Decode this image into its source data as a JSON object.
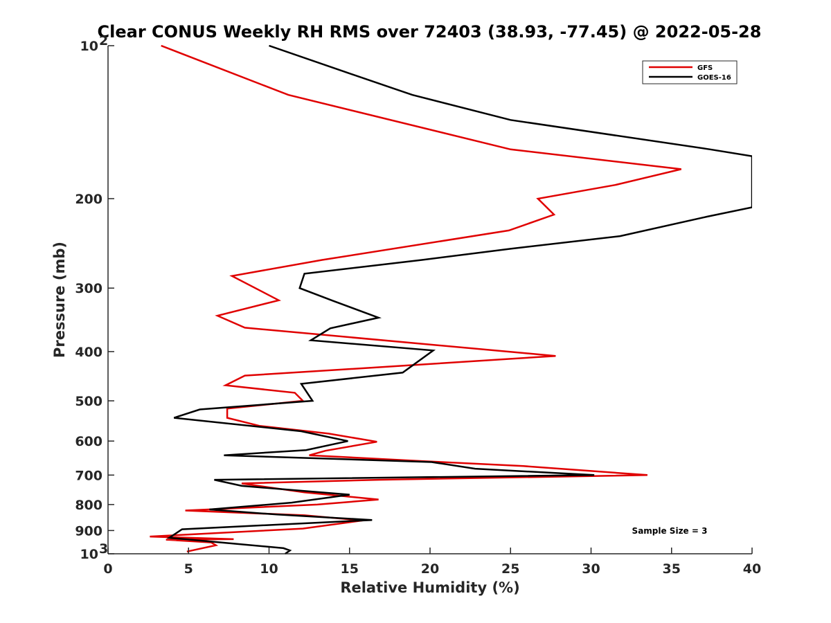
{
  "chart_data": {
    "type": "line",
    "title": "Clear CONUS Weekly RH RMS over 72403 (38.93, -77.45) @ 2022-05-28",
    "xlabel": "Relative Humidity (%)",
    "ylabel": "Pressure (mb)",
    "xlim": [
      0,
      40
    ],
    "ylim": [
      100,
      1000
    ],
    "y_scale": "log",
    "y_reversed": true,
    "x_ticks": [
      "0",
      "5",
      "10",
      "15",
      "20",
      "25",
      "30",
      "35",
      "40"
    ],
    "y_ticks": [
      {
        "value": 100,
        "label": "10",
        "sup": "2"
      },
      {
        "value": 200,
        "label": "200",
        "sup": ""
      },
      {
        "value": 300,
        "label": "300",
        "sup": ""
      },
      {
        "value": 400,
        "label": "400",
        "sup": ""
      },
      {
        "value": 500,
        "label": "500",
        "sup": ""
      },
      {
        "value": 600,
        "label": "600",
        "sup": ""
      },
      {
        "value": 700,
        "label": "700",
        "sup": ""
      },
      {
        "value": 800,
        "label": "800",
        "sup": ""
      },
      {
        "value": 900,
        "label": "900",
        "sup": ""
      },
      {
        "value": 1000,
        "label": "10",
        "sup": "3"
      }
    ],
    "legend_position": "top-right",
    "grid": false,
    "annotation": "Sample Size = 3",
    "series": [
      {
        "name": "GFS",
        "color": "#e00000",
        "points": [
          [
            3.3,
            100
          ],
          [
            11.2,
            125
          ],
          [
            25,
            160
          ],
          [
            35.6,
            175
          ],
          [
            31.5,
            188
          ],
          [
            26.7,
            200
          ],
          [
            27.7,
            215
          ],
          [
            24.9,
            231
          ],
          [
            13.3,
            264
          ],
          [
            7.7,
            284
          ],
          [
            10.6,
            317
          ],
          [
            6.8,
            340
          ],
          [
            8.5,
            359
          ],
          [
            27.8,
            408
          ],
          [
            16.5,
            430
          ],
          [
            8.5,
            446
          ],
          [
            7.3,
            466
          ],
          [
            11.6,
            482
          ],
          [
            12.1,
            500
          ],
          [
            7.4,
            518
          ],
          [
            7.4,
            540
          ],
          [
            9.4,
            560
          ],
          [
            13.7,
            580
          ],
          [
            16.7,
            602
          ],
          [
            13.5,
            627
          ],
          [
            12.5,
            640
          ],
          [
            19.5,
            657
          ],
          [
            25.8,
            672
          ],
          [
            33.5,
            700
          ],
          [
            16.8,
            715
          ],
          [
            8.3,
            727
          ],
          [
            12.2,
            757
          ],
          [
            16.8,
            782
          ],
          [
            13,
            800
          ],
          [
            4.8,
            822
          ],
          [
            12.2,
            840
          ],
          [
            15.8,
            860
          ],
          [
            12.1,
            892
          ],
          [
            2.6,
            925
          ],
          [
            7.8,
            936
          ],
          [
            3.6,
            938
          ],
          [
            6.4,
            950
          ],
          [
            6.7,
            962
          ],
          [
            4.9,
            990
          ]
        ]
      },
      {
        "name": "GOES-16",
        "color": "#000000",
        "points": [
          [
            10,
            100
          ],
          [
            14.5,
            112
          ],
          [
            18.9,
            125
          ],
          [
            25,
            140
          ],
          [
            37.4,
            160
          ],
          [
            40,
            165
          ],
          [
            40,
            208
          ],
          [
            37.2,
            217
          ],
          [
            31.8,
            237
          ],
          [
            25,
            251
          ],
          [
            19.5,
            264
          ],
          [
            12.2,
            281
          ],
          [
            11.9,
            300
          ],
          [
            14,
            318
          ],
          [
            16.8,
            343
          ],
          [
            13.8,
            360
          ],
          [
            12.6,
            380
          ],
          [
            20.2,
            398
          ],
          [
            18.3,
            440
          ],
          [
            12,
            463
          ],
          [
            12.7,
            500
          ],
          [
            5.7,
            520
          ],
          [
            4.1,
            540
          ],
          [
            12,
            574
          ],
          [
            14.9,
            600
          ],
          [
            12.3,
            625
          ],
          [
            7.2,
            640
          ],
          [
            20.1,
            660
          ],
          [
            22.8,
            680
          ],
          [
            30.2,
            700
          ],
          [
            6.6,
            715
          ],
          [
            8.3,
            735
          ],
          [
            15,
            765
          ],
          [
            11.4,
            793
          ],
          [
            6.3,
            818
          ],
          [
            10.5,
            837
          ],
          [
            16.4,
            858
          ],
          [
            4.6,
            895
          ],
          [
            3.8,
            930
          ],
          [
            7,
            950
          ],
          [
            10.9,
            975
          ],
          [
            11.3,
            985
          ],
          [
            11,
            1000
          ]
        ]
      }
    ]
  }
}
